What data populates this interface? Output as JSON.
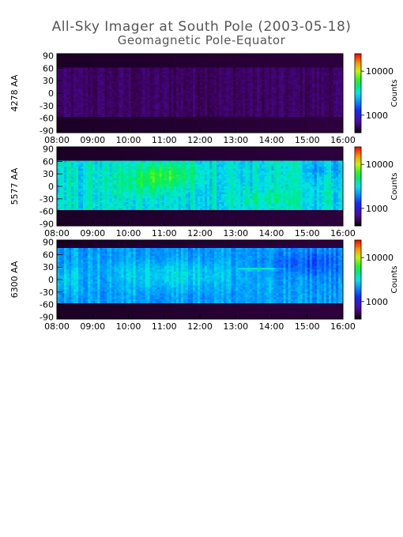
{
  "title": "All-Sky Imager at South Pole (2003-05-18)",
  "subtitle": "Geomagnetic Pole-Equator",
  "chart_data": [
    {
      "type": "heatmap",
      "ylabel": "4278 AA",
      "x_ticks": [
        "08:00",
        "09:00",
        "10:00",
        "11:00",
        "12:00",
        "13:00",
        "14:00",
        "15:00",
        "16:00"
      ],
      "xlim": [
        "08:00",
        "16:00"
      ],
      "y_ticks": [
        90,
        60,
        30,
        0,
        -30,
        -60,
        -90
      ],
      "ylim": [
        -95,
        95
      ],
      "colorbar": {
        "label": "Counts",
        "scale": "log",
        "ticks": [
          10000,
          1000
        ],
        "tick_labels": [
          "10000",
          "1000"
        ],
        "range": [
          400,
          25000
        ]
      },
      "data_band": [
        -55,
        62
      ],
      "base_level": 0.08,
      "texture": 0.05,
      "blobs": []
    },
    {
      "type": "heatmap",
      "ylabel": "5577 AA",
      "x_ticks": [
        "08:00",
        "09:00",
        "10:00",
        "11:00",
        "12:00",
        "13:00",
        "14:00",
        "15:00",
        "16:00"
      ],
      "xlim": [
        "08:00",
        "16:00"
      ],
      "y_ticks": [
        90,
        60,
        30,
        0,
        -30,
        -60,
        -90
      ],
      "ylim": [
        -95,
        95
      ],
      "colorbar": {
        "label": "Counts",
        "scale": "log",
        "ticks": [
          10000,
          1000
        ],
        "tick_labels": [
          "10000",
          "1000"
        ],
        "range": [
          400,
          25000
        ]
      },
      "data_band": [
        -55,
        62
      ],
      "base_level": 0.5,
      "texture": 0.13,
      "blobs": [
        {
          "t": 11.0,
          "lat": 30,
          "dt": 1.0,
          "dlat": 28,
          "amp": 0.14
        },
        {
          "t": 10.4,
          "lat": 0,
          "dt": 1.0,
          "dlat": 30,
          "amp": 0.07
        },
        {
          "t": 13.8,
          "lat": -30,
          "dt": 0.8,
          "dlat": 20,
          "amp": 0.06
        },
        {
          "t": 15.5,
          "lat": 40,
          "dt": 0.6,
          "dlat": 20,
          "amp": -0.07
        }
      ]
    },
    {
      "type": "heatmap",
      "ylabel": "6300 AA",
      "x_ticks": [
        "08:00",
        "09:00",
        "10:00",
        "11:00",
        "12:00",
        "13:00",
        "14:00",
        "15:00",
        "16:00"
      ],
      "xlim": [
        "08:00",
        "16:00"
      ],
      "y_ticks": [
        90,
        60,
        30,
        0,
        -30,
        -60,
        -90
      ],
      "ylim": [
        -95,
        95
      ],
      "colorbar": {
        "label": "Counts",
        "scale": "log",
        "ticks": [
          10000,
          1000
        ],
        "tick_labels": [
          "10000",
          "1000"
        ],
        "range": [
          400,
          25000
        ]
      },
      "data_band": [
        -55,
        75
      ],
      "base_level": 0.41,
      "texture": 0.09,
      "blobs": [
        {
          "t": 11.2,
          "lat": 10,
          "dt": 1.6,
          "dlat": 35,
          "amp": 0.09
        },
        {
          "t": 13.6,
          "lat": 25,
          "dt": 0.5,
          "dlat": 3,
          "amp": 0.18
        },
        {
          "t": 15.0,
          "lat": 40,
          "dt": 1.2,
          "dlat": 30,
          "amp": -0.08
        },
        {
          "t": 8.3,
          "lat": 0,
          "dt": 0.4,
          "dlat": 30,
          "amp": 0.06
        }
      ]
    }
  ]
}
